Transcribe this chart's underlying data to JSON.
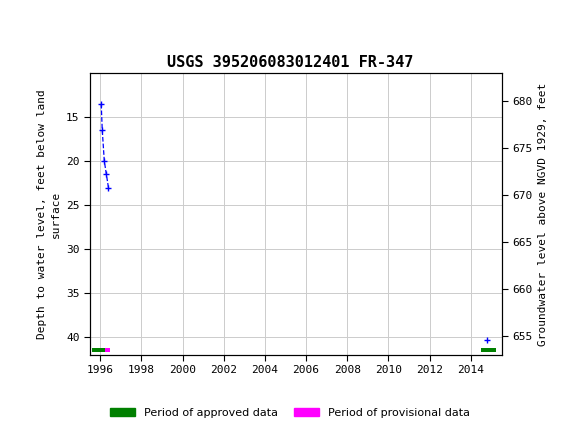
{
  "title": "USGS 395206083012401 FR-347",
  "header_bg_color": "#006633",
  "header_text_color": "#ffffff",
  "plot_bg_color": "#ffffff",
  "grid_color": "#cccccc",
  "left_ylabel": "Depth to water level, feet below land\nsurface",
  "right_ylabel": "Groundwater level above NGVD 1929, feet",
  "xlim": [
    1995.5,
    2015.5
  ],
  "ylim_left_top": 10,
  "ylim_left_bottom": 42,
  "ylim_right_top": 683,
  "ylim_right_bottom": 653,
  "left_yticks": [
    15,
    20,
    25,
    30,
    35,
    40
  ],
  "right_yticks": [
    680,
    675,
    670,
    665,
    660,
    655
  ],
  "xticks": [
    1996,
    1998,
    2000,
    2002,
    2004,
    2006,
    2008,
    2010,
    2012,
    2014
  ],
  "approved_color": "#008000",
  "provisional_color": "#ff00ff",
  "data_line_color": "#0000ff",
  "data_points_x": [
    1996.05,
    1996.1,
    1996.2,
    1996.3,
    1996.4,
    2014.8
  ],
  "data_points_y_left": [
    13.5,
    16.5,
    20.0,
    21.5,
    23.0,
    40.3
  ],
  "approved_bar_x1_1": 1995.6,
  "approved_bar_x2_1": 1996.25,
  "provisional_bar_x1": 1996.25,
  "provisional_bar_x2": 1996.5,
  "approved_bar_x1_2": 2014.5,
  "approved_bar_x2_2": 2015.2,
  "bar_y": 41.5,
  "bar_height": 0.45,
  "legend_approved_label": "Period of approved data",
  "legend_provisional_label": "Period of provisional data"
}
